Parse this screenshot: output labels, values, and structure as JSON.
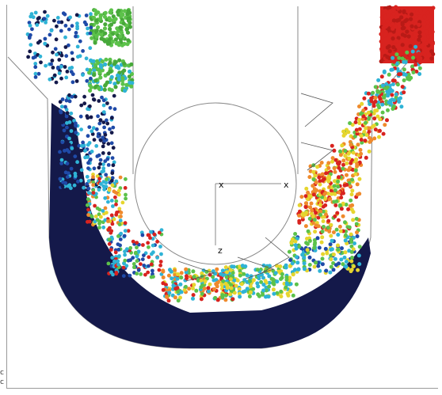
{
  "figure": {
    "axis_labels": {
      "origin_x": "x",
      "right_x": "x",
      "bottom_z": "z"
    },
    "corner_marks": [
      "c",
      "c"
    ],
    "palette": {
      "navy": "#14194a",
      "blue": "#1f4aa8",
      "cyan": "#2fb3d6",
      "green": "#5cc24a",
      "yellow": "#e6d52e",
      "orange": "#ef8a2c",
      "red": "#d8231f",
      "outline": "#8a8a8a"
    }
  }
}
